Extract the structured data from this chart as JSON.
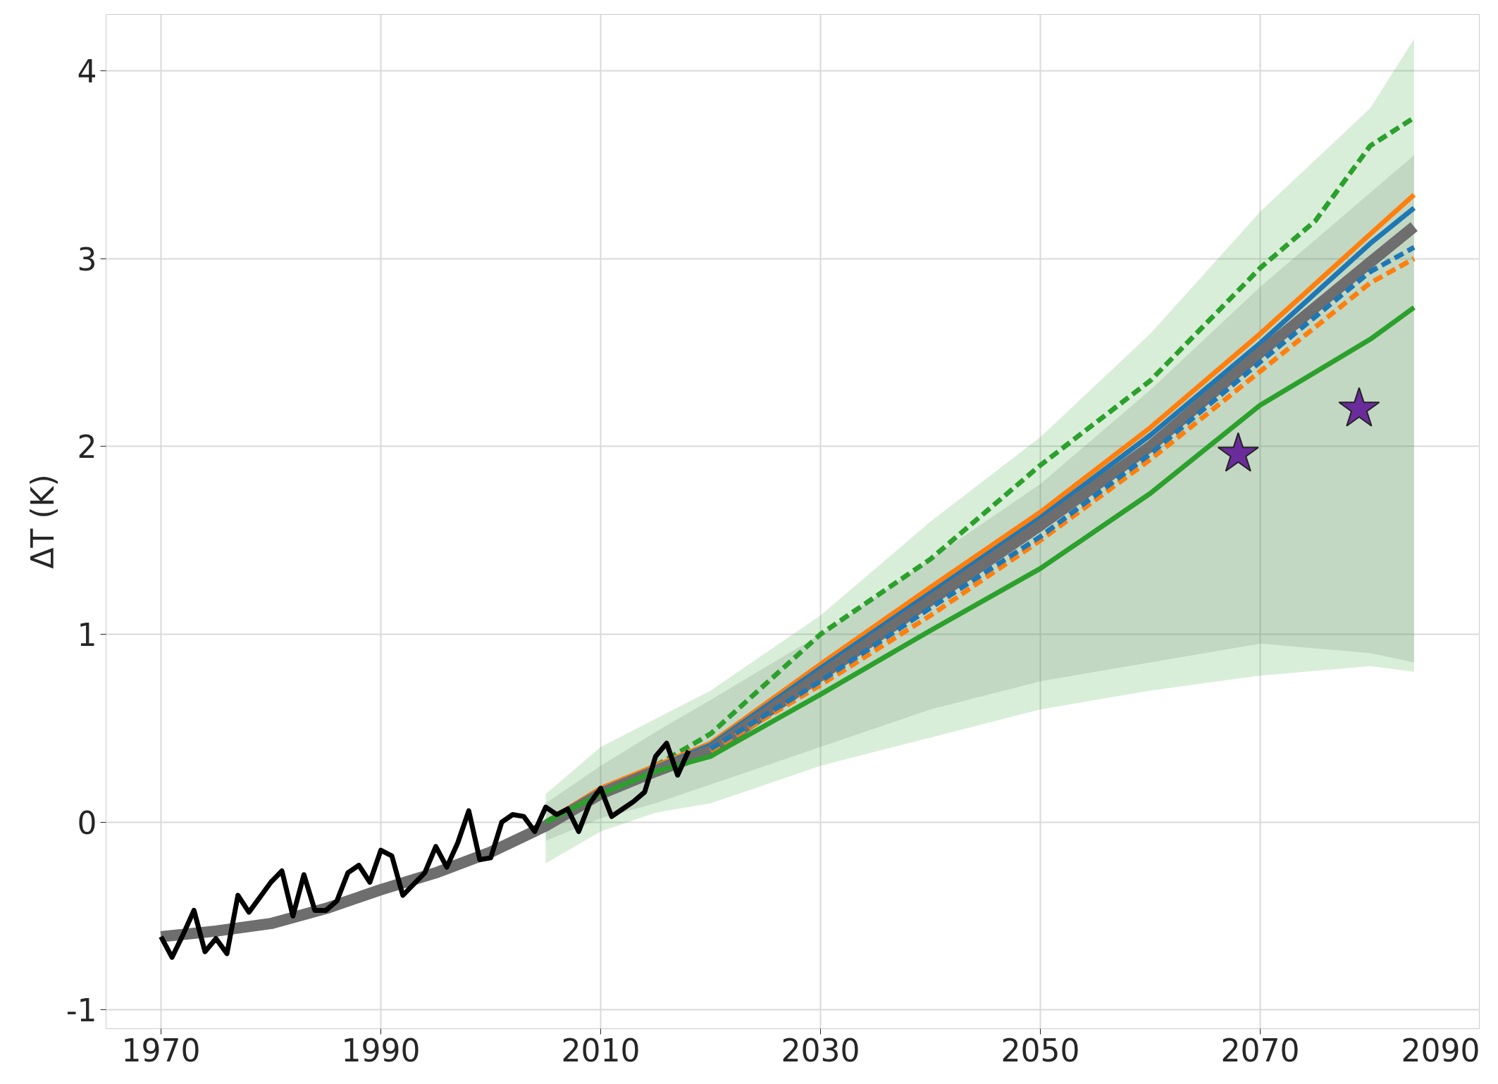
{
  "chart_data": [
    {
      "type": "line",
      "ylabel": "ΔT (K)",
      "xlim": [
        1965,
        2090
      ],
      "ylim": [
        -1.1,
        4.3
      ],
      "xticks": [
        1970,
        1990,
        2010,
        2030,
        2050,
        2070,
        2090
      ],
      "yticks": [
        -1,
        0,
        1,
        2,
        3,
        4
      ],
      "grid": true,
      "series": [
        {
          "type": "line",
          "line_style": "dashed",
          "color": "#2ca02c",
          "x": [
            2010,
            2015,
            2020,
            2030,
            2040,
            2050,
            2060,
            2070,
            2075,
            2080,
            2084
          ],
          "values": [
            0.17,
            0.3,
            0.47,
            1.0,
            1.4,
            1.9,
            2.35,
            2.95,
            3.2,
            3.6,
            3.75
          ]
        },
        {
          "type": "line",
          "line_style": "solid",
          "color": "#ff7f0e",
          "x": [
            2005,
            2010,
            2015,
            2020,
            2030,
            2040,
            2050,
            2060,
            2070,
            2080,
            2084
          ],
          "values": [
            0.0,
            0.18,
            0.3,
            0.42,
            0.84,
            1.25,
            1.65,
            2.1,
            2.6,
            3.13,
            3.34
          ]
        },
        {
          "type": "line",
          "line_style": "solid",
          "color": "#1f77b4",
          "x": [
            2005,
            2010,
            2015,
            2020,
            2030,
            2040,
            2050,
            2060,
            2070,
            2080,
            2084
          ],
          "values": [
            0.0,
            0.17,
            0.29,
            0.41,
            0.82,
            1.22,
            1.62,
            2.06,
            2.55,
            3.08,
            3.27
          ]
        },
        {
          "type": "line",
          "line_style": "solid",
          "color": "#6e6e6e",
          "x": [
            1970,
            1975,
            1980,
            1985,
            1990,
            1995,
            2000,
            2005,
            2010,
            2015,
            2020,
            2030,
            2040,
            2050,
            2060,
            2070,
            2080,
            2084
          ],
          "values": [
            -0.61,
            -0.58,
            -0.54,
            -0.46,
            -0.36,
            -0.27,
            -0.16,
            -0.02,
            0.15,
            0.27,
            0.38,
            0.78,
            1.18,
            1.58,
            2.0,
            2.5,
            2.98,
            3.17
          ],
          "lower": [
            null,
            null,
            null,
            null,
            null,
            null,
            null,
            -0.1,
            0.02,
            0.1,
            0.2,
            0.4,
            0.6,
            0.75,
            0.85,
            0.95,
            0.9,
            0.85
          ],
          "upper": [
            null,
            null,
            null,
            null,
            null,
            null,
            null,
            0.1,
            0.3,
            0.48,
            0.65,
            1.0,
            1.4,
            1.8,
            2.3,
            2.85,
            3.35,
            3.55
          ]
        },
        {
          "type": "line",
          "line_style": "solid",
          "color": "#2ca02c",
          "x": [
            2005,
            2010,
            2015,
            2020,
            2030,
            2040,
            2050,
            2060,
            2070,
            2080,
            2084
          ],
          "values": [
            0.0,
            0.15,
            0.27,
            0.35,
            0.68,
            1.02,
            1.35,
            1.75,
            2.22,
            2.57,
            2.74
          ],
          "lower": [
            -0.22,
            -0.05,
            0.05,
            0.1,
            0.3,
            0.45,
            0.6,
            0.7,
            0.78,
            0.83,
            0.8
          ],
          "upper": [
            0.15,
            0.4,
            0.55,
            0.7,
            1.1,
            1.6,
            2.05,
            2.6,
            3.25,
            3.8,
            4.17
          ]
        },
        {
          "type": "line",
          "line_style": "dashed",
          "color": "#ff7f0e",
          "x": [
            2020,
            2030,
            2040,
            2050,
            2060,
            2070,
            2080,
            2084
          ],
          "values": [
            0.38,
            0.73,
            1.1,
            1.5,
            1.93,
            2.4,
            2.87,
            3.0
          ]
        },
        {
          "type": "line",
          "line_style": "dashed",
          "color": "#1f77b4",
          "x": [
            2020,
            2030,
            2040,
            2050,
            2060,
            2070,
            2080,
            2084
          ],
          "values": [
            0.39,
            0.75,
            1.14,
            1.52,
            1.96,
            2.45,
            2.93,
            3.06
          ]
        },
        {
          "type": "line",
          "line_style": "solid",
          "color": "#000000",
          "x": [
            1970,
            1971,
            1972,
            1973,
            1974,
            1975,
            1976,
            1977,
            1978,
            1979,
            1980,
            1981,
            1982,
            1983,
            1984,
            1985,
            1986,
            1987,
            1988,
            1989,
            1990,
            1991,
            1992,
            1993,
            1994,
            1995,
            1996,
            1997,
            1998,
            1999,
            2000,
            2001,
            2002,
            2003,
            2004,
            2005,
            2006,
            2007,
            2008,
            2009,
            2010,
            2011,
            2012,
            2013,
            2014,
            2015,
            2016,
            2017,
            2018
          ],
          "values": [
            -0.61,
            -0.72,
            -0.6,
            -0.47,
            -0.69,
            -0.62,
            -0.7,
            -0.39,
            -0.48,
            -0.4,
            -0.32,
            -0.26,
            -0.5,
            -0.28,
            -0.47,
            -0.47,
            -0.42,
            -0.27,
            -0.23,
            -0.32,
            -0.15,
            -0.18,
            -0.39,
            -0.33,
            -0.27,
            -0.13,
            -0.24,
            -0.11,
            0.06,
            -0.2,
            -0.19,
            0.0,
            0.04,
            0.03,
            -0.05,
            0.08,
            0.04,
            0.07,
            -0.05,
            0.1,
            0.18,
            0.03,
            0.07,
            0.11,
            0.16,
            0.35,
            0.42,
            0.25,
            0.38
          ]
        },
        {
          "type": "scatter",
          "marker": "star",
          "color": "#6a2c9a",
          "x": [
            2068,
            2079
          ],
          "values": [
            1.96,
            2.2
          ]
        }
      ]
    }
  ]
}
